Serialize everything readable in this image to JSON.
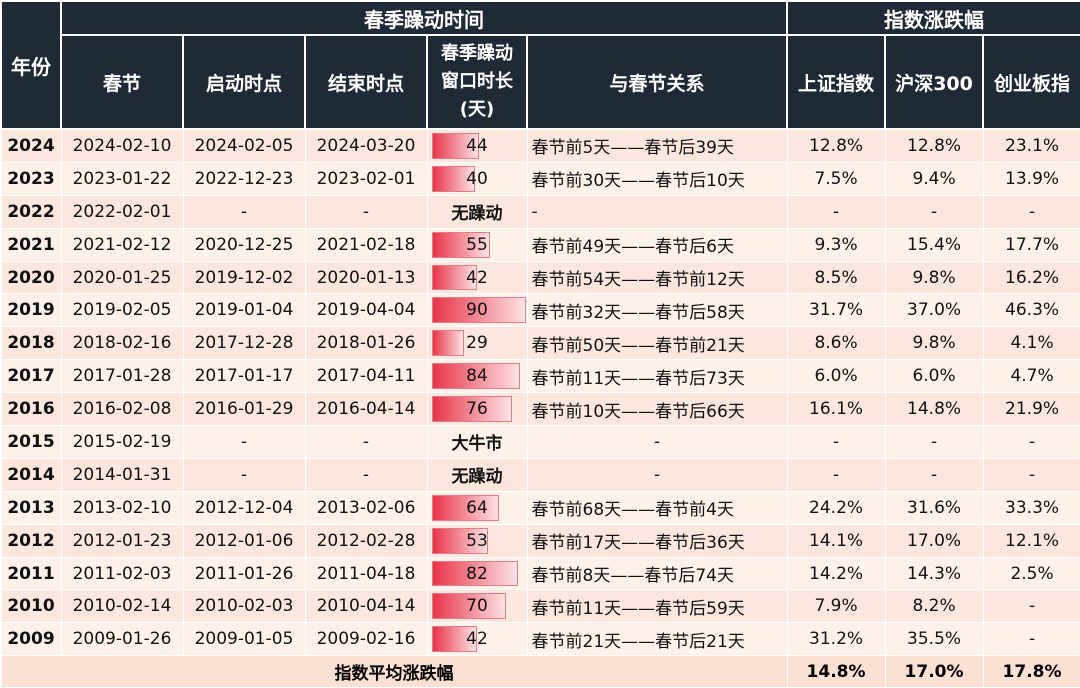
{
  "header": {
    "year": "年份",
    "group_window": "春季躁动时间",
    "group_index": "指数涨跌幅",
    "col_festival": "春节",
    "col_start": "启动时点",
    "col_end": "结束时点",
    "col_duration_l1": "春季躁动",
    "col_duration_l2": "窗口时长",
    "col_duration_l3": "(天)",
    "col_relation": "与春节关系",
    "col_sh": "上证指数",
    "col_hs300": "沪深300",
    "col_cyb": "创业板指"
  },
  "rows": [
    {
      "year": "2024",
      "festival": "2024-02-10",
      "start": "2024-02-05",
      "end": "2024-03-20",
      "duration": "44",
      "relation": "春节前5天——春节后39天",
      "sh": "12.8%",
      "hs300": "12.8%",
      "cyb": "23.1%"
    },
    {
      "year": "2023",
      "festival": "2023-01-22",
      "start": "2022-12-23",
      "end": "2023-02-01",
      "duration": "40",
      "relation": "春节前30天——春节后10天",
      "sh": "7.5%",
      "hs300": "9.4%",
      "cyb": "13.9%"
    },
    {
      "year": "2022",
      "festival": "2022-02-01",
      "start": "-",
      "end": "-",
      "note": "无躁动",
      "relation": "-",
      "sh": "-",
      "hs300": "-",
      "cyb": "-"
    },
    {
      "year": "2021",
      "festival": "2021-02-12",
      "start": "2020-12-25",
      "end": "2021-02-18",
      "duration": "55",
      "relation": "春节前49天——春节后6天",
      "sh": "9.3%",
      "hs300": "15.4%",
      "cyb": "17.7%"
    },
    {
      "year": "2020",
      "festival": "2020-01-25",
      "start": "2019-12-02",
      "end": "2020-01-13",
      "duration": "42",
      "relation": "春节前54天——春节前12天",
      "sh": "8.5%",
      "hs300": "9.8%",
      "cyb": "16.2%"
    },
    {
      "year": "2019",
      "festival": "2019-02-05",
      "start": "2019-01-04",
      "end": "2019-04-04",
      "duration": "90",
      "relation": "春节前32天——春节后58天",
      "sh": "31.7%",
      "hs300": "37.0%",
      "cyb": "46.3%"
    },
    {
      "year": "2018",
      "festival": "2018-02-16",
      "start": "2017-12-28",
      "end": "2018-01-26",
      "duration": "29",
      "relation": "春节前50天——春节前21天",
      "sh": "8.6%",
      "hs300": "9.8%",
      "cyb": "4.1%"
    },
    {
      "year": "2017",
      "festival": "2017-01-28",
      "start": "2017-01-17",
      "end": "2017-04-11",
      "duration": "84",
      "relation": "春节前11天——春节后73天",
      "sh": "6.0%",
      "hs300": "6.0%",
      "cyb": "4.7%"
    },
    {
      "year": "2016",
      "festival": "2016-02-08",
      "start": "2016-01-29",
      "end": "2016-04-14",
      "duration": "76",
      "relation": "春节前10天——春节后66天",
      "sh": "16.1%",
      "hs300": "14.8%",
      "cyb": "21.9%"
    },
    {
      "year": "2015",
      "festival": "2015-02-19",
      "start": "-",
      "end": "-",
      "note": "大牛市",
      "relation": "-",
      "sh": "-",
      "hs300": "-",
      "cyb": "-"
    },
    {
      "year": "2014",
      "festival": "2014-01-31",
      "start": "-",
      "end": "-",
      "note": "无躁动",
      "relation": "-",
      "sh": "-",
      "hs300": "-",
      "cyb": "-"
    },
    {
      "year": "2013",
      "festival": "2013-02-10",
      "start": "2012-12-04",
      "end": "2013-02-06",
      "duration": "64",
      "relation": "春节前68天——春节前4天",
      "sh": "24.2%",
      "hs300": "31.6%",
      "cyb": "33.3%"
    },
    {
      "year": "2012",
      "festival": "2012-01-23",
      "start": "2012-01-06",
      "end": "2012-02-28",
      "duration": "53",
      "relation": "春节前17天——春节后36天",
      "sh": "14.1%",
      "hs300": "17.0%",
      "cyb": "12.1%"
    },
    {
      "year": "2011",
      "festival": "2011-02-03",
      "start": "2011-01-26",
      "end": "2011-04-18",
      "duration": "82",
      "relation": "春节前8天——春节后74天",
      "sh": "14.2%",
      "hs300": "14.3%",
      "cyb": "2.5%"
    },
    {
      "year": "2010",
      "festival": "2010-02-14",
      "start": "2010-02-03",
      "end": "2010-04-14",
      "duration": "70",
      "relation": "春节前11天——春节后59天",
      "sh": "7.9%",
      "hs300": "8.2%",
      "cyb": "-"
    },
    {
      "year": "2009",
      "festival": "2009-01-26",
      "start": "2009-01-05",
      "end": "2009-02-16",
      "duration": "42",
      "relation": "春节前21天——春节后21天",
      "sh": "31.2%",
      "hs300": "35.5%",
      "cyb": "-"
    }
  ],
  "footer": {
    "label": "指数平均涨跌幅",
    "sh": "14.8%",
    "hs300": "17.0%",
    "cyb": "17.8%"
  },
  "colors": {
    "header_bg": "#1f2a36",
    "row_bg": "#fbe7dd",
    "bar": "#e8354a"
  }
}
